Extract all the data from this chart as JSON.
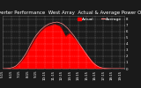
{
  "title": "Solar PV/Inverter Performance  West Array  Actual & Average Power Output",
  "bg_color": "#1a1a1a",
  "plot_bg": "#1a1a1a",
  "fill_color": "#ff0000",
  "line_color": "#cc0000",
  "avg_color": "#ff4444",
  "x_labels": [
    "5:15",
    "5:30",
    "5:45",
    "6:00",
    "6:15",
    "6:30",
    "6:45",
    "7:00",
    "7:15",
    "7:30",
    "7:45",
    "8:00",
    "8:15",
    "8:30",
    "8:45",
    "9:00",
    "9:15",
    "9:30",
    "9:45",
    "10:00",
    "10:15",
    "10:30",
    "10:45",
    "11:00",
    "11:15",
    "11:30",
    "11:45",
    "12:00",
    "12:15",
    "12:30",
    "12:45",
    "13:00",
    "13:15",
    "13:30",
    "13:45",
    "14:00",
    "14:15",
    "14:30",
    "14:45",
    "15:00",
    "15:15",
    "15:30",
    "15:45",
    "16:00",
    "16:15",
    "16:30",
    "16:45",
    "17:00",
    "17:15",
    "17:30",
    "17:45",
    "18:00",
    "18:15",
    "18:30",
    "18:45",
    "19:00",
    "19:15",
    "19:30",
    "19:45"
  ],
  "y_ticks": [
    0,
    1,
    2,
    3,
    4,
    5,
    6,
    7,
    8
  ],
  "ylim": [
    0,
    8.5
  ],
  "actual_values": [
    0.0,
    0.0,
    0.02,
    0.05,
    0.1,
    0.2,
    0.35,
    0.6,
    0.9,
    1.3,
    1.7,
    2.2,
    2.8,
    3.4,
    4.0,
    4.6,
    5.1,
    5.6,
    6.0,
    6.3,
    6.6,
    6.8,
    6.9,
    7.0,
    7.1,
    7.15,
    7.0,
    6.9,
    6.5,
    5.9,
    5.2,
    5.5,
    5.7,
    5.4,
    5.0,
    4.6,
    4.1,
    3.7,
    3.3,
    2.8,
    2.4,
    1.9,
    1.5,
    1.1,
    0.8,
    0.5,
    0.3,
    0.18,
    0.1,
    0.06,
    0.03,
    0.01,
    0.0,
    0.0,
    0.0,
    0.0,
    0.0,
    0.0,
    0.0
  ],
  "avg_values": [
    0.0,
    0.0,
    0.02,
    0.06,
    0.12,
    0.22,
    0.38,
    0.65,
    1.0,
    1.4,
    1.9,
    2.4,
    3.0,
    3.7,
    4.3,
    4.9,
    5.4,
    5.8,
    6.2,
    6.5,
    6.8,
    7.0,
    7.2,
    7.3,
    7.4,
    7.45,
    7.5,
    7.4,
    7.3,
    7.1,
    6.8,
    6.5,
    6.1,
    5.7,
    5.3,
    4.8,
    4.3,
    3.8,
    3.3,
    2.8,
    2.3,
    1.85,
    1.4,
    1.0,
    0.7,
    0.45,
    0.28,
    0.16,
    0.08,
    0.04,
    0.02,
    0.01,
    0.0,
    0.0,
    0.0,
    0.0,
    0.0,
    0.0,
    0.0
  ],
  "grid_color": "#ffffff",
  "title_fontsize": 4.0,
  "tick_fontsize": 2.8,
  "legend_fontsize": 3.2,
  "title_color": "#ffffff",
  "tick_color": "#ffffff",
  "legend_actual_color": "#ff0000",
  "legend_avg_color": "#ff8888"
}
